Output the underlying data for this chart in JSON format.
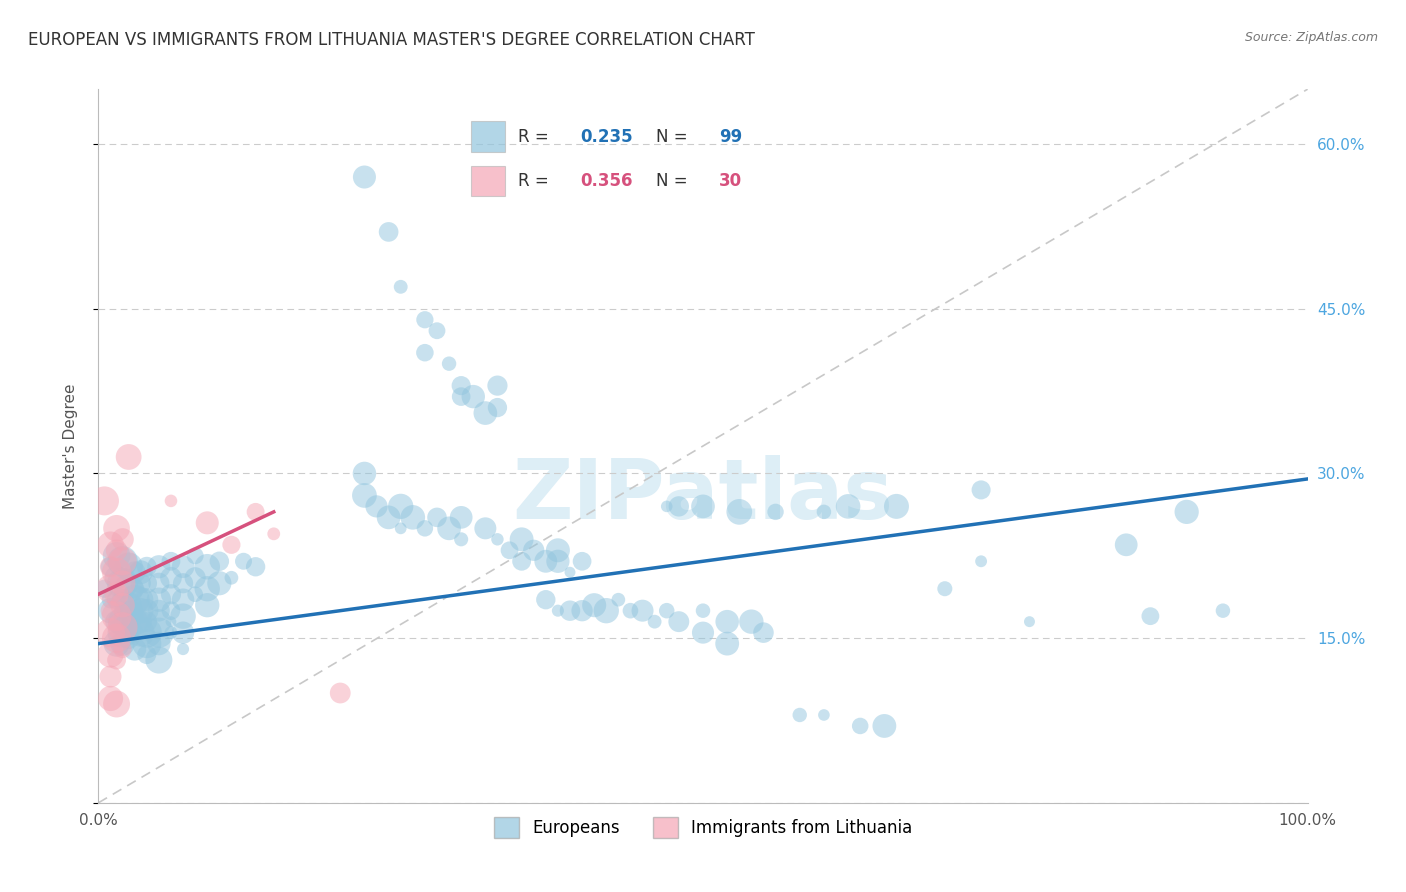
{
  "title": "EUROPEAN VS IMMIGRANTS FROM LITHUANIA MASTER'S DEGREE CORRELATION CHART",
  "source": "Source: ZipAtlas.com",
  "ylabel": "Master's Degree",
  "watermark": "ZIPatlas",
  "xlim": [
    0,
    1.0
  ],
  "ylim": [
    0,
    0.65
  ],
  "xticks": [
    0.0,
    0.2,
    0.4,
    0.6,
    0.8,
    1.0
  ],
  "xticklabels": [
    "0.0%",
    "",
    "",
    "",
    "",
    "100.0%"
  ],
  "yticks": [
    0.0,
    0.15,
    0.3,
    0.45,
    0.6
  ],
  "yticklabels": [
    "",
    "15.0%",
    "30.0%",
    "45.0%",
    "60.0%"
  ],
  "blue_color": "#92c5de",
  "pink_color": "#f4a6b5",
  "blue_line_color": "#2171b5",
  "pink_line_color": "#d6517d",
  "diag_color": "#c8c8c8",
  "grid_color": "#cccccc",
  "watermark_color": "#ddeef6",
  "right_ytick_color": "#4da6e0",
  "title_fontsize": 12,
  "source_fontsize": 9,
  "tick_fontsize": 11,
  "ylabel_fontsize": 11,
  "legend_fontsize": 12,
  "watermark_fontsize": 60,
  "blue_scatter": [
    [
      0.005,
      0.195
    ],
    [
      0.01,
      0.215
    ],
    [
      0.01,
      0.185
    ],
    [
      0.01,
      0.175
    ],
    [
      0.015,
      0.225
    ],
    [
      0.015,
      0.205
    ],
    [
      0.015,
      0.185
    ],
    [
      0.015,
      0.165
    ],
    [
      0.015,
      0.145
    ],
    [
      0.02,
      0.22
    ],
    [
      0.02,
      0.2
    ],
    [
      0.02,
      0.185
    ],
    [
      0.02,
      0.175
    ],
    [
      0.02,
      0.165
    ],
    [
      0.02,
      0.155
    ],
    [
      0.02,
      0.145
    ],
    [
      0.025,
      0.215
    ],
    [
      0.025,
      0.195
    ],
    [
      0.025,
      0.18
    ],
    [
      0.025,
      0.17
    ],
    [
      0.025,
      0.16
    ],
    [
      0.025,
      0.15
    ],
    [
      0.03,
      0.21
    ],
    [
      0.03,
      0.195
    ],
    [
      0.03,
      0.185
    ],
    [
      0.03,
      0.175
    ],
    [
      0.03,
      0.165
    ],
    [
      0.03,
      0.155
    ],
    [
      0.03,
      0.14
    ],
    [
      0.035,
      0.21
    ],
    [
      0.035,
      0.2
    ],
    [
      0.035,
      0.185
    ],
    [
      0.035,
      0.175
    ],
    [
      0.035,
      0.165
    ],
    [
      0.035,
      0.155
    ],
    [
      0.04,
      0.215
    ],
    [
      0.04,
      0.2
    ],
    [
      0.04,
      0.185
    ],
    [
      0.04,
      0.175
    ],
    [
      0.04,
      0.165
    ],
    [
      0.04,
      0.155
    ],
    [
      0.04,
      0.145
    ],
    [
      0.04,
      0.135
    ],
    [
      0.05,
      0.215
    ],
    [
      0.05,
      0.2
    ],
    [
      0.05,
      0.185
    ],
    [
      0.05,
      0.175
    ],
    [
      0.05,
      0.165
    ],
    [
      0.05,
      0.155
    ],
    [
      0.05,
      0.145
    ],
    [
      0.05,
      0.13
    ],
    [
      0.06,
      0.22
    ],
    [
      0.06,
      0.205
    ],
    [
      0.06,
      0.19
    ],
    [
      0.06,
      0.175
    ],
    [
      0.06,
      0.165
    ],
    [
      0.06,
      0.155
    ],
    [
      0.07,
      0.215
    ],
    [
      0.07,
      0.2
    ],
    [
      0.07,
      0.185
    ],
    [
      0.07,
      0.17
    ],
    [
      0.07,
      0.155
    ],
    [
      0.07,
      0.14
    ],
    [
      0.08,
      0.225
    ],
    [
      0.08,
      0.205
    ],
    [
      0.08,
      0.19
    ],
    [
      0.09,
      0.215
    ],
    [
      0.09,
      0.195
    ],
    [
      0.09,
      0.18
    ],
    [
      0.1,
      0.22
    ],
    [
      0.1,
      0.2
    ],
    [
      0.11,
      0.205
    ],
    [
      0.12,
      0.22
    ],
    [
      0.13,
      0.215
    ],
    [
      0.22,
      0.57
    ],
    [
      0.24,
      0.52
    ],
    [
      0.25,
      0.47
    ],
    [
      0.27,
      0.41
    ],
    [
      0.27,
      0.44
    ],
    [
      0.28,
      0.43
    ],
    [
      0.29,
      0.4
    ],
    [
      0.3,
      0.37
    ],
    [
      0.3,
      0.38
    ],
    [
      0.31,
      0.37
    ],
    [
      0.32,
      0.355
    ],
    [
      0.33,
      0.38
    ],
    [
      0.33,
      0.36
    ],
    [
      0.22,
      0.3
    ],
    [
      0.22,
      0.28
    ],
    [
      0.23,
      0.27
    ],
    [
      0.24,
      0.26
    ],
    [
      0.25,
      0.27
    ],
    [
      0.25,
      0.25
    ],
    [
      0.26,
      0.26
    ],
    [
      0.27,
      0.25
    ],
    [
      0.28,
      0.26
    ],
    [
      0.29,
      0.25
    ],
    [
      0.3,
      0.26
    ],
    [
      0.3,
      0.24
    ],
    [
      0.32,
      0.25
    ],
    [
      0.33,
      0.24
    ],
    [
      0.34,
      0.23
    ],
    [
      0.35,
      0.24
    ],
    [
      0.35,
      0.22
    ],
    [
      0.36,
      0.23
    ],
    [
      0.37,
      0.22
    ],
    [
      0.38,
      0.23
    ],
    [
      0.38,
      0.22
    ],
    [
      0.39,
      0.21
    ],
    [
      0.4,
      0.22
    ],
    [
      0.37,
      0.185
    ],
    [
      0.38,
      0.175
    ],
    [
      0.39,
      0.175
    ],
    [
      0.4,
      0.175
    ],
    [
      0.41,
      0.18
    ],
    [
      0.42,
      0.175
    ],
    [
      0.43,
      0.185
    ],
    [
      0.44,
      0.175
    ],
    [
      0.45,
      0.175
    ],
    [
      0.46,
      0.165
    ],
    [
      0.47,
      0.175
    ],
    [
      0.48,
      0.165
    ],
    [
      0.5,
      0.175
    ],
    [
      0.52,
      0.165
    ],
    [
      0.54,
      0.165
    ],
    [
      0.47,
      0.27
    ],
    [
      0.48,
      0.27
    ],
    [
      0.5,
      0.27
    ],
    [
      0.53,
      0.265
    ],
    [
      0.56,
      0.265
    ],
    [
      0.6,
      0.265
    ],
    [
      0.62,
      0.27
    ],
    [
      0.66,
      0.27
    ],
    [
      0.7,
      0.195
    ],
    [
      0.73,
      0.285
    ],
    [
      0.85,
      0.235
    ],
    [
      0.9,
      0.265
    ],
    [
      0.93,
      0.175
    ],
    [
      0.5,
      0.155
    ],
    [
      0.52,
      0.145
    ],
    [
      0.55,
      0.155
    ],
    [
      0.58,
      0.08
    ],
    [
      0.6,
      0.08
    ],
    [
      0.63,
      0.07
    ],
    [
      0.65,
      0.07
    ],
    [
      0.73,
      0.22
    ],
    [
      0.77,
      0.165
    ],
    [
      0.87,
      0.17
    ]
  ],
  "pink_scatter": [
    [
      0.005,
      0.275
    ],
    [
      0.01,
      0.235
    ],
    [
      0.01,
      0.215
    ],
    [
      0.01,
      0.195
    ],
    [
      0.01,
      0.175
    ],
    [
      0.01,
      0.155
    ],
    [
      0.01,
      0.135
    ],
    [
      0.01,
      0.115
    ],
    [
      0.01,
      0.095
    ],
    [
      0.015,
      0.25
    ],
    [
      0.015,
      0.23
    ],
    [
      0.015,
      0.21
    ],
    [
      0.015,
      0.19
    ],
    [
      0.015,
      0.17
    ],
    [
      0.015,
      0.15
    ],
    [
      0.015,
      0.13
    ],
    [
      0.015,
      0.09
    ],
    [
      0.02,
      0.24
    ],
    [
      0.02,
      0.22
    ],
    [
      0.02,
      0.2
    ],
    [
      0.02,
      0.18
    ],
    [
      0.02,
      0.16
    ],
    [
      0.02,
      0.14
    ],
    [
      0.025,
      0.315
    ],
    [
      0.06,
      0.275
    ],
    [
      0.09,
      0.255
    ],
    [
      0.11,
      0.235
    ],
    [
      0.13,
      0.265
    ],
    [
      0.145,
      0.245
    ],
    [
      0.2,
      0.1
    ]
  ],
  "blue_line_x": [
    0.0,
    1.0
  ],
  "blue_line_y": [
    0.145,
    0.295
  ],
  "pink_line_x": [
    0.0,
    0.145
  ],
  "pink_line_y": [
    0.19,
    0.265
  ]
}
